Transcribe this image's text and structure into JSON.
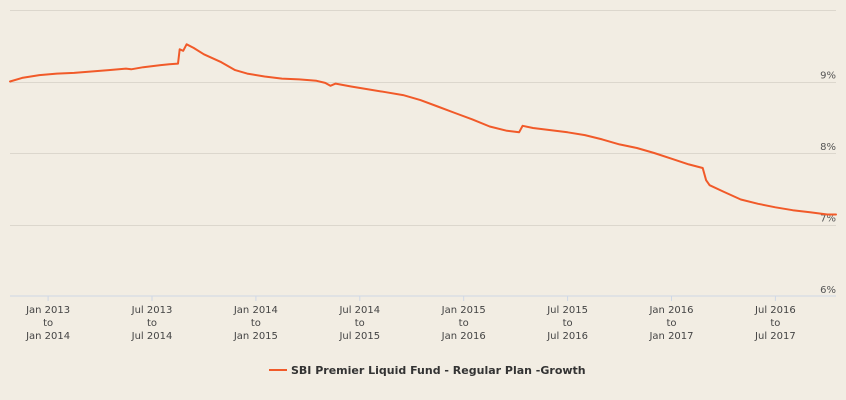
{
  "chart_data": {
    "type": "line",
    "title": "",
    "xlabel": "",
    "ylabel": "",
    "y_axis_position": "right",
    "ylim": [
      6,
      10
    ],
    "y_ticks": [
      {
        "value": 9,
        "label": "9%"
      },
      {
        "value": 8,
        "label": "8%"
      },
      {
        "value": 7,
        "label": "7%"
      },
      {
        "value": 6,
        "label": "6%"
      }
    ],
    "x_tick_labels": [
      {
        "line1": "Jan 2013",
        "line2": "to",
        "line3": "Jan 2014"
      },
      {
        "line1": "Jul 2013",
        "line2": "to",
        "line3": "Jul 2014"
      },
      {
        "line1": "Jan 2014",
        "line2": "to",
        "line3": "Jan 2015"
      },
      {
        "line1": "Jul 2014",
        "line2": "to",
        "line3": "Jul 2015"
      },
      {
        "line1": "Jan 2015",
        "line2": "to",
        "line3": "Jan 2016"
      },
      {
        "line1": "Jul 2015",
        "line2": "to",
        "line3": "Jul 2016"
      },
      {
        "line1": "Jan 2016",
        "line2": "to",
        "line3": "Jan 2017"
      },
      {
        "line1": "Jul 2016",
        "line2": "to",
        "line3": "Jul 2017"
      }
    ],
    "x_tick_values": [
      0,
      6,
      12,
      18,
      24,
      30,
      36,
      42
    ],
    "xlim": [
      -2.2,
      45.5
    ],
    "legend_position": "bottom-center",
    "series": [
      {
        "name": "SBI Premier Liquid Fund - Regular Plan -Growth",
        "color": "#f15a29",
        "points": [
          [
            -2.2,
            9.0
          ],
          [
            -1.5,
            9.05
          ],
          [
            -0.5,
            9.09
          ],
          [
            0.5,
            9.11
          ],
          [
            1.5,
            9.12
          ],
          [
            2.5,
            9.14
          ],
          [
            3.5,
            9.16
          ],
          [
            4.5,
            9.18
          ],
          [
            4.8,
            9.17
          ],
          [
            5.5,
            9.2
          ],
          [
            6.5,
            9.23
          ],
          [
            7.0,
            9.24
          ],
          [
            7.5,
            9.25
          ],
          [
            7.6,
            9.45
          ],
          [
            7.8,
            9.43
          ],
          [
            8.0,
            9.52
          ],
          [
            8.4,
            9.47
          ],
          [
            9.0,
            9.38
          ],
          [
            10.0,
            9.27
          ],
          [
            10.8,
            9.16
          ],
          [
            11.5,
            9.11
          ],
          [
            12.5,
            9.07
          ],
          [
            13.5,
            9.04
          ],
          [
            14.5,
            9.03
          ],
          [
            15.5,
            9.01
          ],
          [
            16.0,
            8.98
          ],
          [
            16.3,
            8.94
          ],
          [
            16.6,
            8.97
          ],
          [
            17.5,
            8.93
          ],
          [
            18.5,
            8.89
          ],
          [
            19.5,
            8.85
          ],
          [
            20.5,
            8.81
          ],
          [
            21.5,
            8.74
          ],
          [
            22.5,
            8.65
          ],
          [
            23.5,
            8.56
          ],
          [
            24.5,
            8.47
          ],
          [
            25.5,
            8.37
          ],
          [
            26.5,
            8.31
          ],
          [
            27.2,
            8.29
          ],
          [
            27.4,
            8.38
          ],
          [
            28.0,
            8.35
          ],
          [
            29.0,
            8.32
          ],
          [
            30.0,
            8.29
          ],
          [
            31.0,
            8.25
          ],
          [
            32.0,
            8.19
          ],
          [
            33.0,
            8.12
          ],
          [
            34.0,
            8.07
          ],
          [
            35.0,
            8.0
          ],
          [
            36.0,
            7.92
          ],
          [
            37.0,
            7.84
          ],
          [
            37.8,
            7.79
          ],
          [
            38.0,
            7.62
          ],
          [
            38.2,
            7.55
          ],
          [
            39.0,
            7.46
          ],
          [
            40.0,
            7.35
          ],
          [
            41.0,
            7.29
          ],
          [
            42.0,
            7.24
          ],
          [
            43.0,
            7.2
          ],
          [
            44.0,
            7.17
          ],
          [
            45.0,
            7.14
          ],
          [
            45.5,
            7.14
          ]
        ]
      }
    ]
  }
}
